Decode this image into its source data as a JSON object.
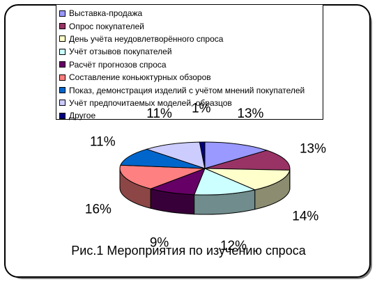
{
  "chart_data": {
    "type": "pie",
    "three_d": true,
    "title": "Рис.1 Мероприятия по изучению спроса",
    "legend_position": "top",
    "categories": [
      "Выставка-продажа",
      "Опрос покупателей",
      "День учёта неудовлетворённого спроса",
      "Учёт отзывов покупателей",
      "Расчёт прогнозов спроса",
      "Составление коньюктурных обзоров",
      "Показ, демонстрация изделий с учётом мнений покупателей",
      "Учёт предпочитаемых моделей, образцов",
      "Другое"
    ],
    "values": [
      13,
      13,
      14,
      12,
      9,
      16,
      11,
      11,
      1
    ],
    "labels": [
      "13%",
      "13%",
      "14%",
      "12%",
      "9%",
      "16%",
      "11%",
      "11%",
      "1%"
    ],
    "colors": [
      "#9999FF",
      "#993366",
      "#FFFFCC",
      "#CCFFFF",
      "#660066",
      "#FF8080",
      "#0066CC",
      "#CCCCFF",
      "#000080"
    ]
  }
}
